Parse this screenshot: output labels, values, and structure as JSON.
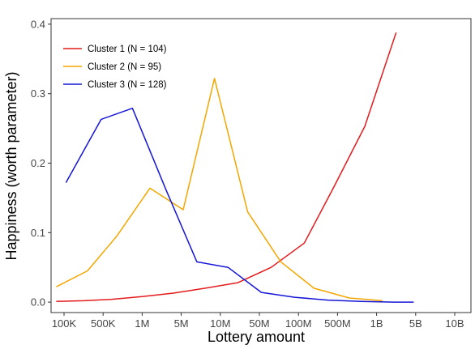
{
  "chart_data": {
    "type": "line",
    "title": "",
    "xlabel": "Lottery amount",
    "ylabel": "Happiness (worth parameter)",
    "categories": [
      "100K",
      "500K",
      "1M",
      "5M",
      "10M",
      "50M",
      "100M",
      "500M",
      "1B",
      "5B",
      "10B"
    ],
    "ylim": [
      -0.015,
      0.408
    ],
    "yticks": [
      0.0,
      0.1,
      0.2,
      0.3,
      0.4
    ],
    "ytick_labels": [
      "0.0",
      "0.1",
      "0.2",
      "0.3",
      "0.4"
    ],
    "grid": false,
    "legend_position": "top-left",
    "series": [
      {
        "name": "Cluster 1 (N = 104)",
        "color": "#e41a1c",
        "points": [
          {
            "x": -0.2,
            "y": 0.001
          },
          {
            "x": 0.5,
            "y": 0.002
          },
          {
            "x": 1.2,
            "y": 0.004
          },
          {
            "x": 2.0,
            "y": 0.008
          },
          {
            "x": 2.8,
            "y": 0.013
          },
          {
            "x": 3.6,
            "y": 0.02
          },
          {
            "x": 4.45,
            "y": 0.028
          },
          {
            "x": 5.3,
            "y": 0.05
          },
          {
            "x": 6.15,
            "y": 0.085
          },
          {
            "x": 6.9,
            "y": 0.165
          },
          {
            "x": 7.7,
            "y": 0.253
          },
          {
            "x": 8.5,
            "y": 0.388
          }
        ]
      },
      {
        "name": "Cluster 2 (N = 95)",
        "color": "#f4a600",
        "points": [
          {
            "x": -0.2,
            "y": 0.022
          },
          {
            "x": 0.6,
            "y": 0.045
          },
          {
            "x": 1.35,
            "y": 0.095
          },
          {
            "x": 2.2,
            "y": 0.164
          },
          {
            "x": 3.05,
            "y": 0.133
          },
          {
            "x": 3.85,
            "y": 0.322
          },
          {
            "x": 4.7,
            "y": 0.13
          },
          {
            "x": 5.55,
            "y": 0.058
          },
          {
            "x": 6.4,
            "y": 0.02
          },
          {
            "x": 7.3,
            "y": 0.006
          },
          {
            "x": 8.15,
            "y": 0.002
          }
        ]
      },
      {
        "name": "Cluster 3 (N = 128)",
        "color": "#1515d6",
        "points": [
          {
            "x": 0.05,
            "y": 0.172
          },
          {
            "x": 0.95,
            "y": 0.263
          },
          {
            "x": 1.75,
            "y": 0.279
          },
          {
            "x": 2.6,
            "y": 0.163
          },
          {
            "x": 3.4,
            "y": 0.058
          },
          {
            "x": 4.2,
            "y": 0.05
          },
          {
            "x": 5.05,
            "y": 0.014
          },
          {
            "x": 5.9,
            "y": 0.007
          },
          {
            "x": 6.75,
            "y": 0.003
          },
          {
            "x": 7.6,
            "y": 0.001
          },
          {
            "x": 8.45,
            "y": 0.0
          },
          {
            "x": 8.95,
            "y": 0.0
          }
        ]
      }
    ]
  }
}
